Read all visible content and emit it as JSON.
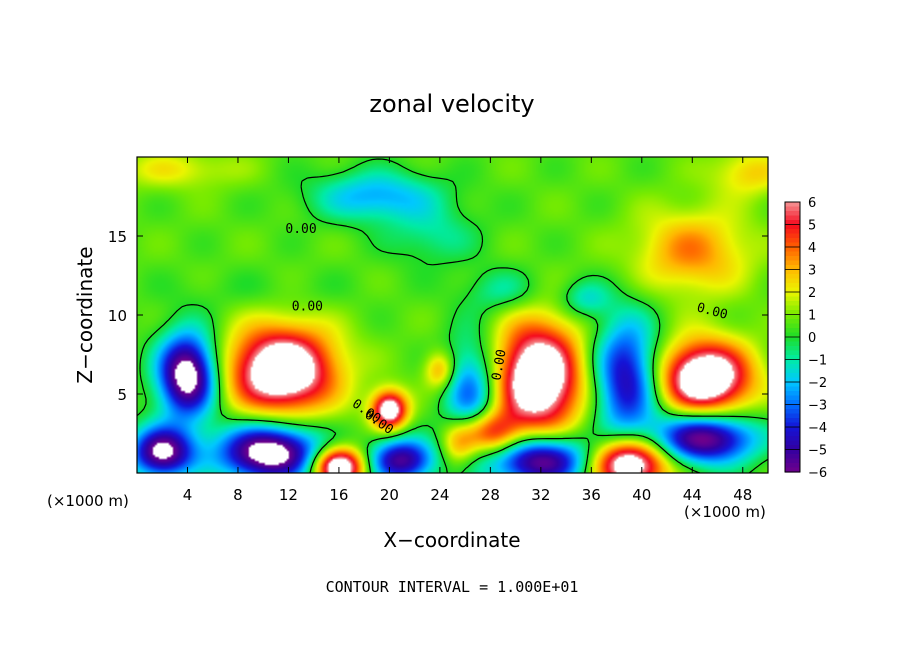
{
  "chart_data": {
    "type": "heatmap",
    "title": "zonal velocity",
    "xlabel": "X−coordinate",
    "ylabel": "Z−coordinate",
    "x_unit_left": "(×1000 m)",
    "x_unit_right": "(×1000 m)",
    "xlim": [
      0,
      50
    ],
    "ylim": [
      0,
      20
    ],
    "x_ticks": [
      "4",
      "8",
      "12",
      "16",
      "20",
      "24",
      "28",
      "32",
      "36",
      "40",
      "44",
      "48"
    ],
    "y_ticks": [
      "5",
      "10",
      "15"
    ],
    "colorbar_range": [
      -6,
      6
    ],
    "colorbar_ticks": [
      "6",
      "5",
      "4",
      "3",
      "2",
      "1",
      "0",
      "−1",
      "−2",
      "−3",
      "−4",
      "−5",
      "−6"
    ],
    "contour_labels": [
      "0.00",
      "0.00",
      "0.00",
      "0.00",
      "0.00",
      "0.00"
    ],
    "footer": "CONTOUR INTERVAL = 1.000E+01",
    "background_value": 0.6,
    "features": [
      {
        "kind": "jet",
        "x": 4,
        "z": 6.2,
        "rx": 2.3,
        "rz": 2.6,
        "v": -8
      },
      {
        "kind": "jet",
        "x": 11.5,
        "z": 6.5,
        "rx": 4.2,
        "rz": 2.7,
        "v": 8
      },
      {
        "kind": "jet",
        "x": 20,
        "z": 4,
        "rx": 1.4,
        "rz": 1.2,
        "v": 7
      },
      {
        "kind": "jet",
        "x": 26.5,
        "z": 5,
        "rx": 2.2,
        "rz": 3.5,
        "v": -4
      },
      {
        "kind": "jet",
        "x": 31.8,
        "z": 6,
        "rx": 3.4,
        "rz": 3.5,
        "v": 8
      },
      {
        "kind": "jet",
        "x": 38.8,
        "z": 6,
        "rx": 2.6,
        "rz": 3.8,
        "v": -5.5
      },
      {
        "kind": "jet",
        "x": 45,
        "z": 6,
        "rx": 3.6,
        "rz": 2.3,
        "v": 8
      },
      {
        "kind": "jet",
        "x": 44,
        "z": 14,
        "rx": 4.5,
        "rz": 2.6,
        "v": 3
      },
      {
        "kind": "jet",
        "x": 19,
        "z": 17.5,
        "rx": 5,
        "rz": 1.6,
        "v": -3
      },
      {
        "kind": "jet",
        "x": 23.5,
        "z": 15,
        "rx": 3.5,
        "rz": 1.8,
        "v": -1.5
      },
      {
        "kind": "jet",
        "x": 29,
        "z": 11.5,
        "rx": 3,
        "rz": 1.4,
        "v": -1.6
      },
      {
        "kind": "jet",
        "x": 10,
        "z": 11.5,
        "rx": 8,
        "rz": 1.3,
        "v": -0.4
      },
      {
        "kind": "jet",
        "x": 48.5,
        "z": 19,
        "rx": 3,
        "rz": 1.5,
        "v": 2
      },
      {
        "kind": "jet",
        "x": 3,
        "z": 19.2,
        "rx": 5,
        "rz": 1.2,
        "v": 1.5
      },
      {
        "kind": "jet",
        "x": 2,
        "z": 1.3,
        "rx": 2.5,
        "rz": 1.6,
        "v": -7
      },
      {
        "kind": "jet",
        "x": 10.5,
        "z": 1.3,
        "rx": 4,
        "rz": 1.8,
        "v": -8
      },
      {
        "kind": "jet",
        "x": 16,
        "z": 0.4,
        "rx": 2,
        "rz": 1.2,
        "v": 8
      },
      {
        "kind": "jet",
        "x": 21,
        "z": 0.8,
        "rx": 2.6,
        "rz": 1.4,
        "v": -6
      },
      {
        "kind": "jet",
        "x": 28,
        "z": 2.5,
        "rx": 2.2,
        "rz": 1.4,
        "v": 5
      },
      {
        "kind": "jet",
        "x": 32,
        "z": 0.8,
        "rx": 4,
        "rz": 1.6,
        "v": -7
      },
      {
        "kind": "jet",
        "x": 39,
        "z": 0.6,
        "rx": 3,
        "rz": 1.6,
        "v": 8
      },
      {
        "kind": "jet",
        "x": 45,
        "z": 2.2,
        "rx": 4,
        "rz": 1.6,
        "v": -7
      },
      {
        "kind": "jet",
        "x": 24,
        "z": 6.5,
        "rx": 1.2,
        "rz": 1.2,
        "v": 3
      },
      {
        "kind": "jet",
        "x": 25.5,
        "z": 1.8,
        "rx": 1.5,
        "rz": 1.5,
        "v": 3
      },
      {
        "kind": "jet",
        "x": 35.5,
        "z": 11,
        "rx": 2,
        "rz": 1.2,
        "v": -2
      }
    ]
  }
}
